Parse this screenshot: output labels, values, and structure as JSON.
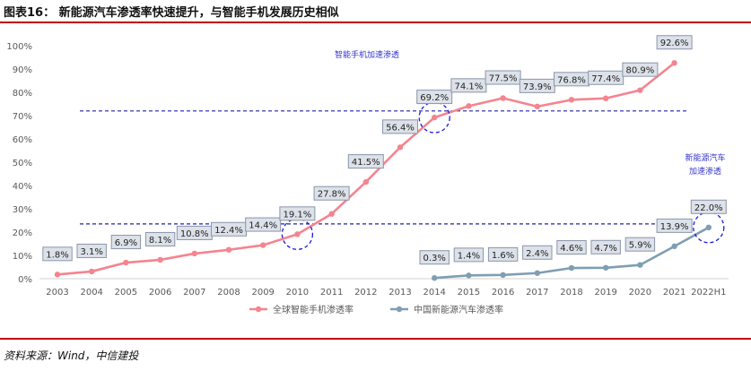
{
  "header": {
    "title": "图表16：  新能源汽车渗透率快速提升，与智能手机发展历史相似"
  },
  "footer": {
    "source": "资料来源：Wind，中信建投"
  },
  "chart_data": {
    "type": "line",
    "x": [
      "2003",
      "2004",
      "2005",
      "2006",
      "2007",
      "2008",
      "2009",
      "2010",
      "2011",
      "2012",
      "2013",
      "2014",
      "2015",
      "2016",
      "2017",
      "2018",
      "2019",
      "2020",
      "2021",
      "2022H1"
    ],
    "ylim": [
      0,
      100
    ],
    "yticks": [
      "0%",
      "10%",
      "20%",
      "30%",
      "40%",
      "50%",
      "60%",
      "70%",
      "80%",
      "90%",
      "100%"
    ],
    "grid": false,
    "legend_position": "bottom",
    "series": [
      {
        "name": "全球智能手机渗透率",
        "color": "#f4848f",
        "values": [
          1.8,
          3.1,
          6.9,
          8.1,
          10.8,
          12.4,
          14.4,
          19.1,
          27.8,
          41.5,
          56.4,
          69.2,
          74.1,
          77.5,
          73.9,
          76.8,
          77.4,
          80.9,
          92.6,
          null
        ],
        "labels": [
          "1.8%",
          "3.1%",
          "6.9%",
          "8.1%",
          "10.8%",
          "12.4%",
          "14.4%",
          "19.1%",
          "27.8%",
          "41.5%",
          "56.4%",
          "69.2%",
          "74.1%",
          "77.5%",
          "73.9%",
          "76.8%",
          "77.4%",
          "80.9%",
          "92.6%",
          ""
        ]
      },
      {
        "name": "中国新能源汽车渗透率",
        "color": "#7f9eb2",
        "values": [
          null,
          null,
          null,
          null,
          null,
          null,
          null,
          null,
          null,
          null,
          null,
          0.3,
          1.4,
          1.6,
          2.4,
          4.6,
          4.7,
          5.9,
          13.9,
          22.0
        ],
        "labels": [
          "",
          "",
          "",
          "",
          "",
          "",
          "",
          "",
          "",
          "",
          "",
          "0.3%",
          "1.4%",
          "1.6%",
          "2.4%",
          "4.6%",
          "4.7%",
          "5.9%",
          "13.9%",
          "22.0%"
        ]
      }
    ],
    "reference_lines": [
      {
        "value": 72,
        "color": "#2222aa"
      },
      {
        "value": 23.5,
        "color": "#2222aa"
      }
    ],
    "annotations": {
      "smartphone": "智能手机加速渗透",
      "nev_line1": "新能源汽车",
      "nev_line2": "加速渗透"
    },
    "highlight_circles": [
      {
        "series": 0,
        "x": "2010"
      },
      {
        "series": 0,
        "x": "2014"
      },
      {
        "series": 1,
        "x": "2022H1"
      }
    ]
  }
}
